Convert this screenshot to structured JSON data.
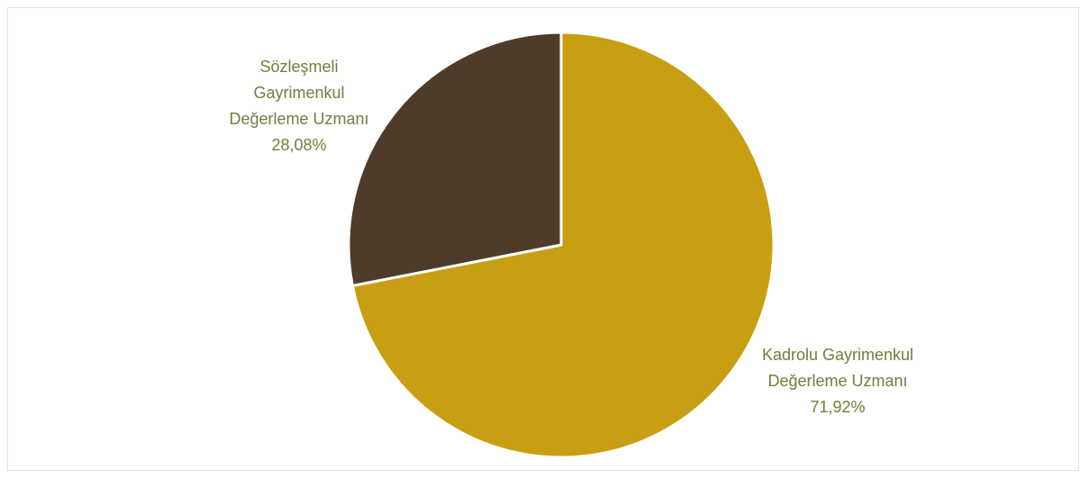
{
  "chart_data": {
    "type": "pie",
    "title": "",
    "slices": [
      {
        "label_lines": [
          "Kadrolu Gayrimenkul",
          "Değerleme Uzmanı"
        ],
        "value": 71.92,
        "value_text": "71,92%",
        "color": "#c89f12"
      },
      {
        "label_lines": [
          "Sözleşmeli",
          "Gayrimenkul",
          "Değerleme Uzmanı"
        ],
        "value": 28.08,
        "value_text": "28,08%",
        "color": "#4f3b2a"
      }
    ],
    "label_color": "#6f7f3a",
    "start_angle_deg": 0,
    "direction": "clockwise"
  }
}
